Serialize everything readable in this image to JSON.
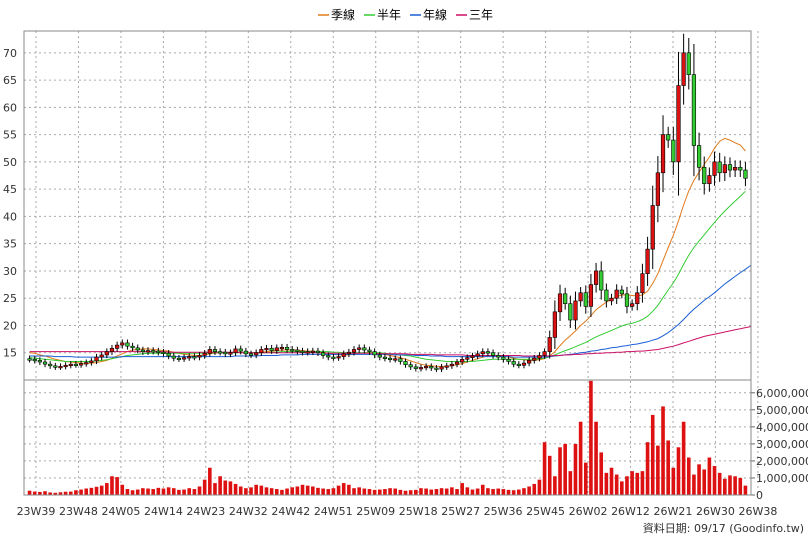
{
  "chart_data": [
    {
      "type": "candlestick",
      "title": "",
      "xlabel": "",
      "ylabel": "",
      "ylim": [
        10,
        74
      ],
      "y_ticks": [
        15,
        20,
        25,
        30,
        35,
        40,
        45,
        50,
        55,
        60,
        65,
        70
      ],
      "grid": true,
      "legend_position": "top-center",
      "legend": [
        {
          "name": "季線",
          "color": "#e07a1a"
        },
        {
          "name": "半年",
          "color": "#33cc33"
        },
        {
          "name": "年線",
          "color": "#1a5fd6"
        },
        {
          "name": "三年",
          "color": "#cc1166"
        }
      ],
      "up_color": "#dd1111",
      "down_color": "#33cc33",
      "x_labels": [
        "23W39",
        "23W48",
        "24W05",
        "24W14",
        "24W23",
        "24W32",
        "24W42",
        "24W51",
        "25W09",
        "25W18",
        "25W27",
        "25W36",
        "25W45",
        "26W02",
        "26W12",
        "26W21",
        "26W30",
        "26W38"
      ],
      "close": [
        13.8,
        13.6,
        13.3,
        12.9,
        12.6,
        12.4,
        12.5,
        12.7,
        12.9,
        12.8,
        13.0,
        13.2,
        13.5,
        14.2,
        14.6,
        15.2,
        15.8,
        16.4,
        16.8,
        16.2,
        15.9,
        15.5,
        15.2,
        15.4,
        15.3,
        15.1,
        14.9,
        14.4,
        14.0,
        13.9,
        14.1,
        14.3,
        14.2,
        14.5,
        14.9,
        15.6,
        15.2,
        15.1,
        14.8,
        15.0,
        15.7,
        15.3,
        14.8,
        14.6,
        15.0,
        15.6,
        15.8,
        15.4,
        15.9,
        16.0,
        15.6,
        15.5,
        15.3,
        15.1,
        15.2,
        15.3,
        15.0,
        14.5,
        14.2,
        14.1,
        14.3,
        14.8,
        15.1,
        15.6,
        15.9,
        15.5,
        15.2,
        14.6,
        14.2,
        14.0,
        13.8,
        13.9,
        13.4,
        12.8,
        12.4,
        12.1,
        12.3,
        12.5,
        12.2,
        12.0,
        12.4,
        12.6,
        12.9,
        13.3,
        13.8,
        14.1,
        14.4,
        14.8,
        15.2,
        15.0,
        14.5,
        14.2,
        13.8,
        13.4,
        12.9,
        12.7,
        13.1,
        13.6,
        14.0,
        14.5,
        15.2,
        17.8,
        22.5,
        25.8,
        24.0,
        21.0,
        24.5,
        26.0,
        23.5,
        27.5,
        30.0,
        26.5,
        24.5,
        25.0,
        26.5,
        25.8,
        23.5,
        24.0,
        26.0,
        29.5,
        34.0,
        42.0,
        48.0,
        55.0,
        54.0,
        50.0,
        64.0,
        70.0,
        66.0,
        53.0,
        49.0,
        46.0,
        47.5,
        50.0,
        48.0,
        49.5,
        48.5,
        49.0,
        48.5,
        47.0
      ],
      "open": [
        13.9,
        13.8,
        13.6,
        13.3,
        12.9,
        12.6,
        12.4,
        12.5,
        12.7,
        12.9,
        12.8,
        13.0,
        13.2,
        13.5,
        14.2,
        14.6,
        15.2,
        15.8,
        16.4,
        16.8,
        16.2,
        15.9,
        15.5,
        15.2,
        15.4,
        15.3,
        15.1,
        14.9,
        14.4,
        14.0,
        13.9,
        14.1,
        14.3,
        14.2,
        14.5,
        14.9,
        15.6,
        15.2,
        15.1,
        14.8,
        15.0,
        15.7,
        15.3,
        14.8,
        14.6,
        15.0,
        15.6,
        15.8,
        15.4,
        15.9,
        16.0,
        15.6,
        15.5,
        15.3,
        15.1,
        15.2,
        15.3,
        15.0,
        14.5,
        14.2,
        14.1,
        14.3,
        14.8,
        15.1,
        15.6,
        15.9,
        15.5,
        15.2,
        14.6,
        14.2,
        14.0,
        13.8,
        13.9,
        13.4,
        12.8,
        12.4,
        12.1,
        12.3,
        12.5,
        12.2,
        12.0,
        12.4,
        12.6,
        12.9,
        13.3,
        13.8,
        14.1,
        14.4,
        14.8,
        15.2,
        15.0,
        14.5,
        14.2,
        13.8,
        13.4,
        12.9,
        12.7,
        13.1,
        13.6,
        14.0,
        14.5,
        15.2,
        17.8,
        22.5,
        25.8,
        24.0,
        21.0,
        24.5,
        26.0,
        23.5,
        27.5,
        30.0,
        26.5,
        24.5,
        25.0,
        26.5,
        25.8,
        23.5,
        24.0,
        26.0,
        29.5,
        34.0,
        42.0,
        48.0,
        55.0,
        54.0,
        50.0,
        64.0,
        70.0,
        66.0,
        53.0,
        49.0,
        46.0,
        47.5,
        50.0,
        48.0,
        49.5,
        48.5,
        49.0,
        48.5
      ],
      "volume_axis": {
        "ylim": [
          0,
          6750000
        ],
        "ticks": [
          0,
          1000000,
          2000000,
          3000000,
          4000000,
          5000000,
          6000000
        ],
        "tick_labels": [
          "0",
          "1,000,000",
          "2,000,000",
          "3,000,000",
          "4,000,000",
          "5,000,000",
          "6,000,000"
        ]
      },
      "volume": [
        250000,
        200000,
        180000,
        220000,
        150000,
        130000,
        160000,
        190000,
        200000,
        280000,
        320000,
        380000,
        420000,
        480000,
        550000,
        700000,
        1100000,
        1050000,
        600000,
        350000,
        280000,
        320000,
        400000,
        380000,
        350000,
        420000,
        380000,
        450000,
        400000,
        300000,
        320000,
        400000,
        350000,
        500000,
        900000,
        1600000,
        700000,
        1100000,
        850000,
        800000,
        650000,
        500000,
        400000,
        450000,
        600000,
        550000,
        450000,
        400000,
        350000,
        300000,
        380000,
        450000,
        500000,
        600000,
        550000,
        500000,
        420000,
        380000,
        350000,
        400000,
        550000,
        700000,
        600000,
        400000,
        450000,
        380000,
        350000,
        300000,
        320000,
        350000,
        400000,
        380000,
        300000,
        250000,
        280000,
        300000,
        400000,
        380000,
        320000,
        350000,
        400000,
        380000,
        450000,
        350000,
        700000,
        450000,
        320000,
        380000,
        600000,
        400000,
        350000,
        380000,
        350000,
        300000,
        280000,
        320000,
        400000,
        500000,
        650000,
        900000,
        3100000,
        2300000,
        1100000,
        2800000,
        3000000,
        1400000,
        3000000,
        4300000,
        1900000,
        6700000,
        4300000,
        2500000,
        1300000,
        1600000,
        1200000,
        800000,
        1100000,
        1400000,
        1300000,
        1400000,
        3100000,
        4700000,
        2900000,
        5200000,
        3200000,
        1600000,
        2800000,
        4300000,
        2200000,
        1200000,
        1800000,
        1500000,
        2200000,
        1700000,
        1300000,
        950000,
        1150000,
        1100000,
        1000000,
        550000
      ],
      "series": [
        {
          "name": "季線",
          "color": "#e07a1a",
          "values": [
            15.0,
            14.9,
            14.6,
            14.4,
            14.1,
            13.8,
            13.6,
            13.4,
            13.3,
            13.2,
            13.1,
            13.1,
            13.1,
            13.2,
            13.4,
            13.6,
            14.0,
            14.4,
            14.8,
            15.2,
            15.5,
            15.6,
            15.7,
            15.7,
            15.6,
            15.5,
            15.4,
            15.3,
            15.1,
            14.9,
            14.7,
            14.6,
            14.5,
            14.5,
            14.6,
            14.8,
            14.9,
            15.0,
            15.0,
            15.0,
            15.1,
            15.1,
            15.0,
            15.0,
            15.0,
            15.1,
            15.2,
            15.3,
            15.4,
            15.5,
            15.5,
            15.5,
            15.5,
            15.4,
            15.3,
            15.3,
            15.2,
            15.1,
            14.9,
            14.7,
            14.6,
            14.6,
            14.6,
            14.7,
            14.9,
            15.0,
            15.1,
            15.0,
            14.9,
            14.7,
            14.5,
            14.3,
            14.1,
            13.8,
            13.5,
            13.2,
            12.9,
            12.7,
            12.6,
            12.5,
            12.5,
            12.5,
            12.6,
            12.8,
            13.0,
            13.3,
            13.6,
            13.9,
            14.2,
            14.4,
            14.5,
            14.5,
            14.4,
            14.2,
            14.0,
            13.8,
            13.7,
            13.6,
            13.6,
            13.7,
            13.9,
            14.4,
            15.2,
            16.3,
            17.3,
            18.1,
            19.0,
            20.0,
            20.8,
            21.8,
            22.9,
            23.6,
            24.3,
            24.8,
            25.3,
            25.6,
            25.6,
            25.5,
            25.4,
            25.6,
            26.3,
            27.7,
            29.5,
            31.9,
            34.3,
            36.5,
            39.2,
            42.1,
            44.7,
            46.6,
            48.1,
            49.5,
            50.9,
            52.5,
            53.8,
            54.3,
            54.0,
            53.5,
            53.1,
            52.0
          ]
        },
        {
          "name": "半年",
          "color": "#33cc33",
          "values": [
            14.1,
            14.0,
            13.9,
            13.8,
            13.7,
            13.6,
            13.5,
            13.4,
            13.4,
            13.4,
            13.4,
            13.4,
            13.4,
            13.5,
            13.6,
            13.7,
            13.9,
            14.1,
            14.3,
            14.5,
            14.6,
            14.7,
            14.8,
            14.9,
            14.9,
            14.9,
            14.9,
            14.9,
            14.9,
            14.9,
            14.9,
            14.9,
            14.9,
            14.9,
            15.0,
            15.0,
            15.0,
            15.0,
            15.0,
            15.0,
            15.0,
            15.0,
            15.0,
            15.0,
            15.0,
            15.0,
            15.0,
            15.1,
            15.1,
            15.2,
            15.2,
            15.2,
            15.2,
            15.2,
            15.2,
            15.2,
            15.2,
            15.2,
            15.2,
            15.1,
            15.1,
            15.0,
            15.0,
            15.0,
            15.0,
            15.0,
            15.0,
            15.0,
            15.0,
            14.9,
            14.8,
            14.7,
            14.6,
            14.5,
            14.4,
            14.2,
            14.0,
            13.8,
            13.7,
            13.6,
            13.5,
            13.4,
            13.4,
            13.4,
            13.4,
            13.4,
            13.4,
            13.5,
            13.6,
            13.7,
            13.8,
            13.8,
            13.8,
            13.8,
            13.8,
            13.8,
            13.8,
            13.8,
            13.8,
            13.9,
            14.0,
            14.3,
            14.6,
            15.0,
            15.4,
            15.7,
            16.1,
            16.5,
            16.9,
            17.4,
            17.9,
            18.3,
            18.7,
            19.1,
            19.5,
            19.9,
            20.2,
            20.4,
            20.7,
            21.1,
            21.7,
            22.6,
            23.7,
            25.1,
            26.5,
            27.8,
            29.4,
            31.2,
            32.9,
            34.3,
            35.5,
            36.6,
            37.8,
            38.9,
            40.0,
            41.0,
            41.9,
            42.8,
            43.7,
            44.6
          ]
        },
        {
          "name": "年線",
          "color": "#1a5fd6",
          "values": [
            14.4,
            14.4,
            14.4,
            14.4,
            14.4,
            14.3,
            14.3,
            14.3,
            14.3,
            14.2,
            14.2,
            14.2,
            14.2,
            14.2,
            14.2,
            14.2,
            14.2,
            14.2,
            14.3,
            14.3,
            14.3,
            14.3,
            14.3,
            14.3,
            14.3,
            14.3,
            14.3,
            14.3,
            14.3,
            14.3,
            14.3,
            14.3,
            14.3,
            14.3,
            14.3,
            14.3,
            14.3,
            14.3,
            14.3,
            14.3,
            14.4,
            14.4,
            14.4,
            14.4,
            14.4,
            14.5,
            14.5,
            14.5,
            14.5,
            14.6,
            14.6,
            14.6,
            14.6,
            14.7,
            14.7,
            14.7,
            14.7,
            14.7,
            14.7,
            14.7,
            14.7,
            14.7,
            14.7,
            14.7,
            14.7,
            14.7,
            14.7,
            14.7,
            14.7,
            14.7,
            14.7,
            14.6,
            14.6,
            14.6,
            14.6,
            14.5,
            14.5,
            14.5,
            14.4,
            14.4,
            14.4,
            14.3,
            14.3,
            14.3,
            14.3,
            14.3,
            14.3,
            14.3,
            14.3,
            14.3,
            14.3,
            14.3,
            14.3,
            14.3,
            14.2,
            14.2,
            14.2,
            14.2,
            14.2,
            14.2,
            14.2,
            14.3,
            14.4,
            14.5,
            14.6,
            14.7,
            14.8,
            15.0,
            15.1,
            15.3,
            15.4,
            15.6,
            15.7,
            15.9,
            16.0,
            16.2,
            16.3,
            16.5,
            16.6,
            16.8,
            17.0,
            17.3,
            17.6,
            18.1,
            18.7,
            19.4,
            20.2,
            21.1,
            22.1,
            23.0,
            23.8,
            24.6,
            25.3,
            26.0,
            26.8,
            27.6,
            28.3,
            29.0,
            29.7,
            30.3,
            31.0
          ]
        },
        {
          "name": "三年",
          "color": "#cc1166",
          "values": [
            15.2,
            15.2,
            15.2,
            15.2,
            15.2,
            15.2,
            15.2,
            15.2,
            15.2,
            15.2,
            15.2,
            15.2,
            15.2,
            15.2,
            15.2,
            15.2,
            15.2,
            15.2,
            15.2,
            15.2,
            15.2,
            15.2,
            15.2,
            15.2,
            15.2,
            15.2,
            15.2,
            15.1,
            15.1,
            15.1,
            15.1,
            15.1,
            15.1,
            15.1,
            15.1,
            15.1,
            15.1,
            15.1,
            15.1,
            15.1,
            15.1,
            15.0,
            15.0,
            15.0,
            15.0,
            15.0,
            15.0,
            15.0,
            15.0,
            15.0,
            15.0,
            15.0,
            15.0,
            15.0,
            15.0,
            15.0,
            15.0,
            14.9,
            14.9,
            14.9,
            14.9,
            14.9,
            14.9,
            14.9,
            14.9,
            14.9,
            14.9,
            14.9,
            14.8,
            14.8,
            14.8,
            14.8,
            14.8,
            14.8,
            14.7,
            14.7,
            14.7,
            14.7,
            14.7,
            14.6,
            14.6,
            14.6,
            14.6,
            14.6,
            14.6,
            14.5,
            14.5,
            14.5,
            14.5,
            14.5,
            14.5,
            14.5,
            14.5,
            14.5,
            14.5,
            14.5,
            14.4,
            14.4,
            14.4,
            14.4,
            14.4,
            14.4,
            14.5,
            14.5,
            14.6,
            14.6,
            14.7,
            14.7,
            14.8,
            14.8,
            14.9,
            14.9,
            15.0,
            15.0,
            15.1,
            15.1,
            15.2,
            15.2,
            15.3,
            15.3,
            15.4,
            15.5,
            15.6,
            15.8,
            16.0,
            16.2,
            16.5,
            16.8,
            17.1,
            17.4,
            17.7,
            18.0,
            18.2,
            18.4,
            18.6,
            18.8,
            19.0,
            19.2,
            19.4,
            19.6,
            19.8
          ]
        }
      ],
      "footer": "資料日期: 09/17 (Goodinfo.tw)"
    }
  ]
}
